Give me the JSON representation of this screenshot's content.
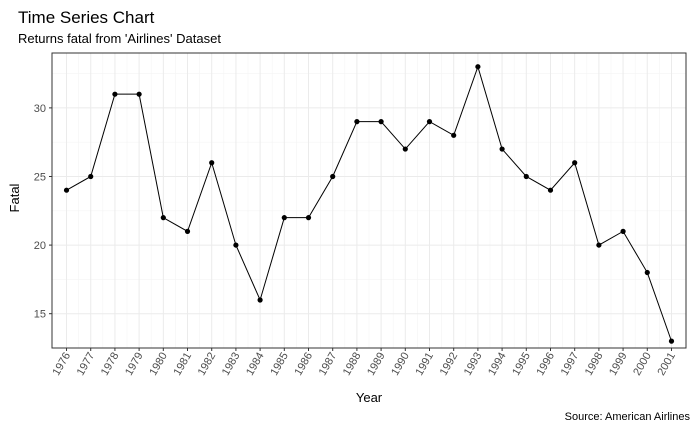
{
  "chart_data": {
    "type": "line",
    "title": "Time Series Chart",
    "subtitle": "Returns fatal from 'Airlines' Dataset",
    "caption": "Source: American Airlines",
    "xlabel": "Year",
    "ylabel": "Fatal",
    "x": [
      1976,
      1977,
      1978,
      1979,
      1980,
      1981,
      1982,
      1983,
      1984,
      1985,
      1986,
      1987,
      1988,
      1989,
      1990,
      1991,
      1992,
      1993,
      1994,
      1995,
      1996,
      1997,
      1998,
      1999,
      2000,
      2001
    ],
    "x_tick_labels": [
      "1976",
      "1977",
      "1978",
      "1979",
      "1980",
      "1981",
      "1982",
      "1983",
      "1984",
      "1985",
      "1986",
      "1987",
      "1988",
      "1989",
      "1990",
      "1991",
      "1992",
      "1993",
      "1994",
      "1995",
      "1996",
      "1997",
      "1998",
      "1999",
      "2000",
      "2001"
    ],
    "series": [
      {
        "values": [
          24,
          25,
          31,
          31,
          22,
          21,
          26,
          20,
          16,
          22,
          22,
          25,
          29,
          29,
          27,
          29,
          28,
          33,
          27,
          25,
          24,
          26,
          20,
          21,
          18,
          13
        ]
      }
    ],
    "ylim": [
      12.5,
      34
    ],
    "y_ticks": [
      15,
      20,
      25,
      30
    ],
    "grid": true,
    "legend": "none",
    "colors": {
      "line": "#000000",
      "point": "#000000",
      "grid": "#ebebeb",
      "panel_border": "#333333",
      "tick_text": "#4d4d4d"
    }
  }
}
